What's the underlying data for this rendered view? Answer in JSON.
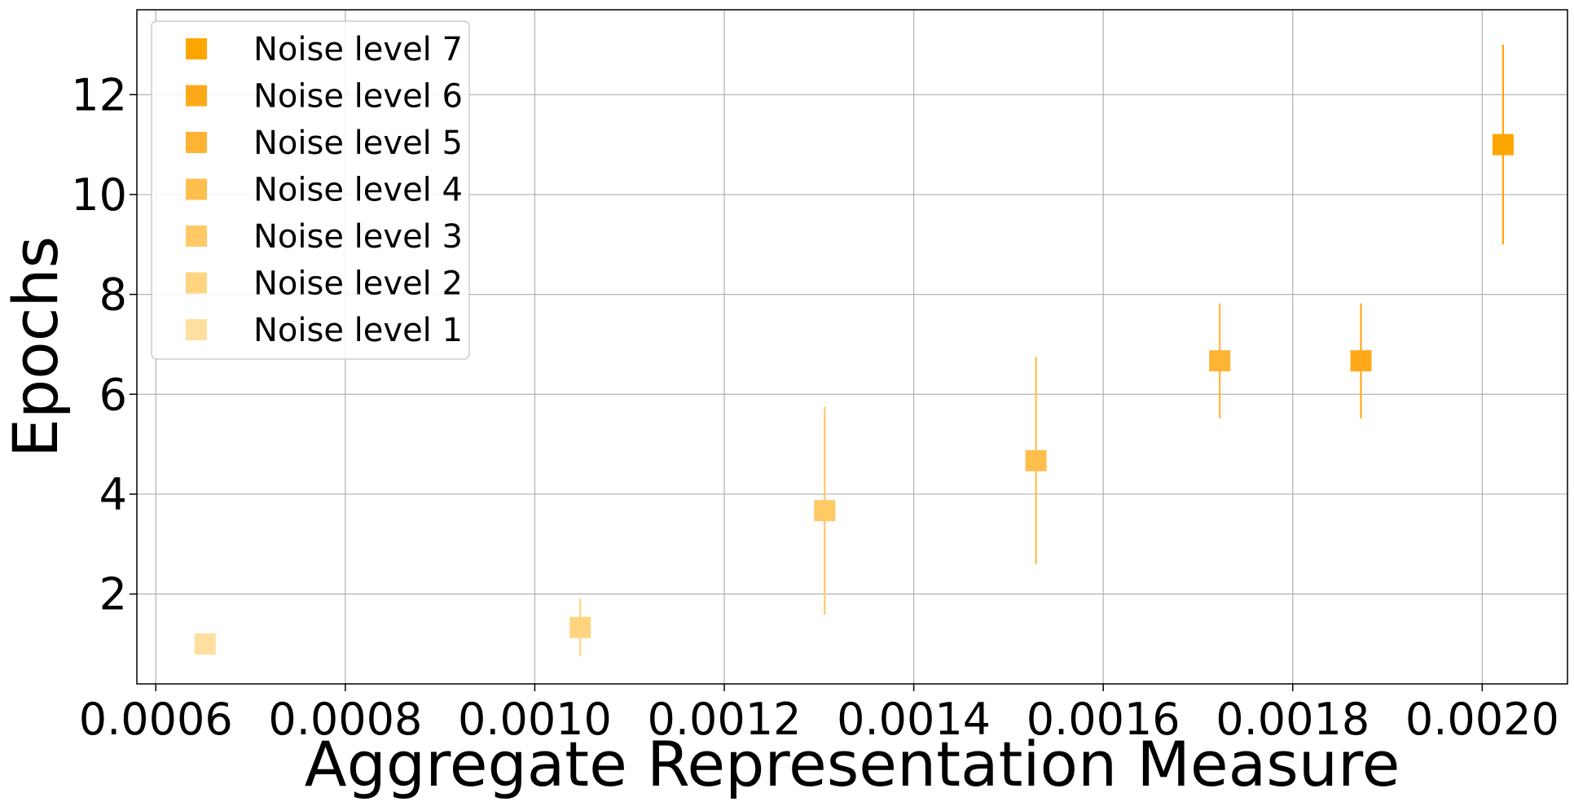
{
  "chart_data": {
    "type": "scatter",
    "title": "",
    "xlabel": "Aggregate Representation Measure",
    "ylabel": "Epochs",
    "xlim": [
      0.00058,
      0.00209
    ],
    "ylim": [
      0.2,
      13.7
    ],
    "x_ticks": [
      0.0006,
      0.0008,
      0.001,
      0.0012,
      0.0014,
      0.0016,
      0.0018,
      0.002
    ],
    "x_tick_labels": [
      "0.0006",
      "0.0008",
      "0.0010",
      "0.0012",
      "0.0014",
      "0.0016",
      "0.0018",
      "0.0020"
    ],
    "y_ticks": [
      2,
      4,
      6,
      8,
      10,
      12
    ],
    "y_tick_labels": [
      "2",
      "4",
      "6",
      "8",
      "10",
      "12"
    ],
    "grid": true,
    "legend_position": "top-left",
    "marker": "square",
    "series": [
      {
        "name": "Noise level 7",
        "color": "#FFA500",
        "x": 0.002022,
        "y": 11.0,
        "yerr": 2.0
      },
      {
        "name": "Noise level 6",
        "color": "#FFA81A",
        "x": 0.001872,
        "y": 6.67,
        "yerr": 1.15
      },
      {
        "name": "Noise level 5",
        "color": "#FFB333",
        "x": 0.001723,
        "y": 6.67,
        "yerr": 1.15
      },
      {
        "name": "Noise level 4",
        "color": "#FFBF4D",
        "x": 0.001529,
        "y": 4.67,
        "yerr": 2.08
      },
      {
        "name": "Noise level 3",
        "color": "#FFC966",
        "x": 0.001306,
        "y": 3.67,
        "yerr": 2.08
      },
      {
        "name": "Noise level 2",
        "color": "#FFD480",
        "x": 0.001048,
        "y": 1.33,
        "yerr": 0.58
      },
      {
        "name": "Noise level 1",
        "color": "#FFDF9F",
        "x": 0.000652,
        "y": 1.0,
        "yerr": 0.0
      }
    ]
  }
}
